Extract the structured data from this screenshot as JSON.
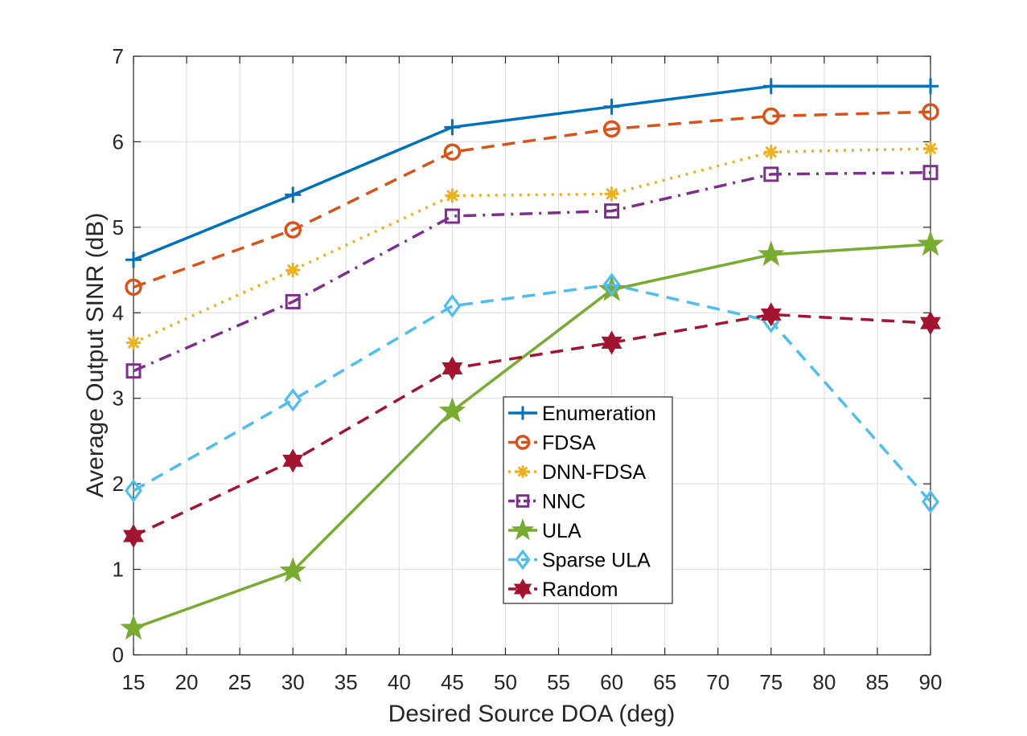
{
  "chart_data": {
    "type": "line",
    "title": "",
    "xlabel": "Desired Source DOA (deg)",
    "ylabel": "Average Output SINR (dB)",
    "xlim": [
      15,
      90
    ],
    "ylim": [
      0,
      7
    ],
    "xticks": [
      "15",
      "20",
      "25",
      "30",
      "35",
      "40",
      "45",
      "50",
      "55",
      "60",
      "65",
      "70",
      "75",
      "80",
      "85",
      "90"
    ],
    "yticks": [
      "0",
      "1",
      "2",
      "3",
      "4",
      "5",
      "6",
      "7"
    ],
    "grid": true,
    "legend_position": "center",
    "x": [
      15,
      30,
      45,
      60,
      75,
      90
    ],
    "series": [
      {
        "name": "Enumeration",
        "values": [
          4.62,
          5.38,
          6.17,
          6.41,
          6.65,
          6.65
        ],
        "color": "#0072BD",
        "marker": "plus",
        "dash": "solid"
      },
      {
        "name": "FDSA",
        "values": [
          4.3,
          4.97,
          5.88,
          6.15,
          6.3,
          6.35
        ],
        "color": "#D95319",
        "marker": "circle",
        "dash": "dashed"
      },
      {
        "name": "DNN-FDSA",
        "values": [
          3.65,
          4.5,
          5.37,
          5.39,
          5.88,
          5.92
        ],
        "color": "#EDB120",
        "marker": "asterisk",
        "dash": "dotted"
      },
      {
        "name": "NNC",
        "values": [
          3.32,
          4.13,
          5.13,
          5.19,
          5.62,
          5.64
        ],
        "color": "#7E2F8E",
        "marker": "square",
        "dash": "dashdot"
      },
      {
        "name": "ULA",
        "values": [
          0.31,
          0.98,
          2.85,
          4.27,
          4.68,
          4.8
        ],
        "color": "#77AC30",
        "marker": "pentagram",
        "dash": "solid"
      },
      {
        "name": "Sparse ULA",
        "values": [
          1.92,
          2.98,
          4.08,
          4.33,
          3.9,
          1.79
        ],
        "color": "#4DBEEE",
        "marker": "diamond",
        "dash": "dashed"
      },
      {
        "name": "Random",
        "values": [
          1.39,
          2.27,
          3.35,
          3.65,
          3.98,
          3.88
        ],
        "color": "#A2142F",
        "marker": "hexagram",
        "dash": "dashed"
      }
    ]
  }
}
